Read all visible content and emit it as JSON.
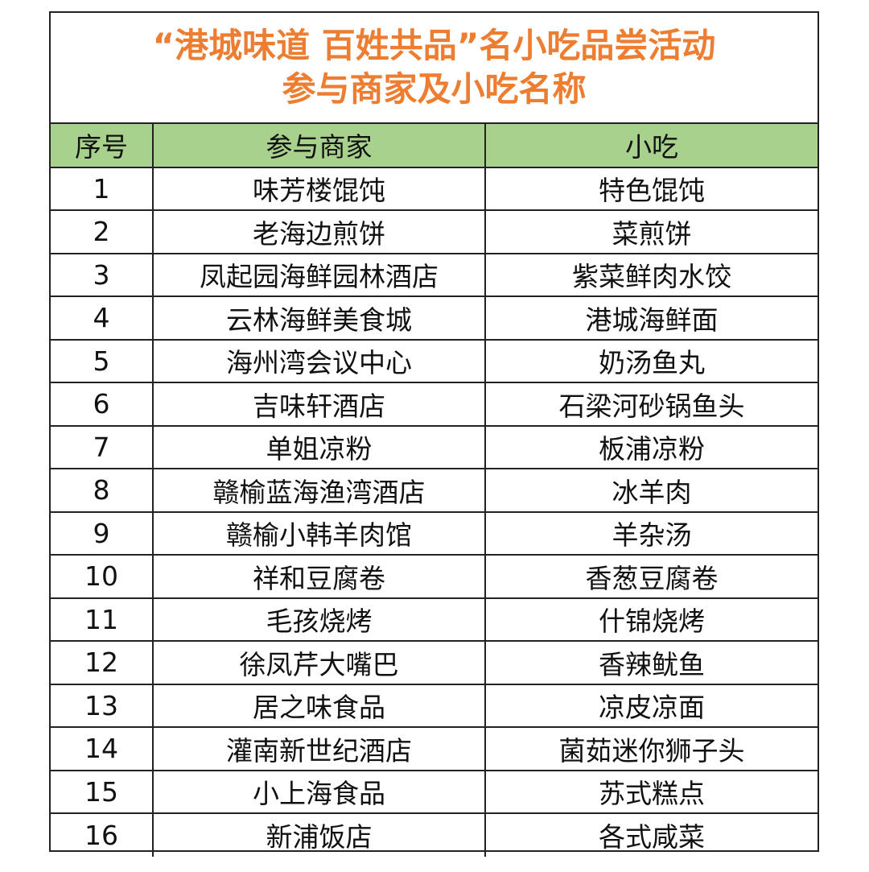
{
  "title": {
    "line1": "“港城味道 百姓共品”名小吃品尝活动",
    "line2": "参与商家及小吃名称"
  },
  "colors": {
    "title": "#ed7d31",
    "header_bg": "#a9d18e",
    "border": "#222222"
  },
  "table": {
    "headers": [
      "序号",
      "参与商家",
      "小吃"
    ],
    "rows": [
      [
        "1",
        "味芳楼馄饨",
        "特色馄饨"
      ],
      [
        "2",
        "老海边煎饼",
        "菜煎饼"
      ],
      [
        "3",
        "凤起园海鲜园林酒店",
        "紫菜鲜肉水饺"
      ],
      [
        "4",
        "云林海鲜美食城",
        "港城海鲜面"
      ],
      [
        "5",
        "海州湾会议中心",
        "奶汤鱼丸"
      ],
      [
        "6",
        "吉味轩酒店",
        "石梁河砂锅鱼头"
      ],
      [
        "7",
        "单姐凉粉",
        "板浦凉粉"
      ],
      [
        "8",
        "赣榆蓝海渔湾酒店",
        "冰羊肉"
      ],
      [
        "9",
        "赣榆小韩羊肉馆",
        "羊杂汤"
      ],
      [
        "10",
        "祥和豆腐卷",
        "香葱豆腐卷"
      ],
      [
        "11",
        "毛孩烧烤",
        "什锦烧烤"
      ],
      [
        "12",
        "徐凤芹大嘴巴",
        "香辣鱿鱼"
      ],
      [
        "13",
        "居之味食品",
        "凉皮凉面"
      ],
      [
        "14",
        "灌南新世纪酒店",
        "菌茹迷你狮子头"
      ],
      [
        "15",
        "小上海食品",
        "苏式糕点"
      ],
      [
        "16",
        "新浦饭店",
        "各式咸菜"
      ]
    ]
  }
}
